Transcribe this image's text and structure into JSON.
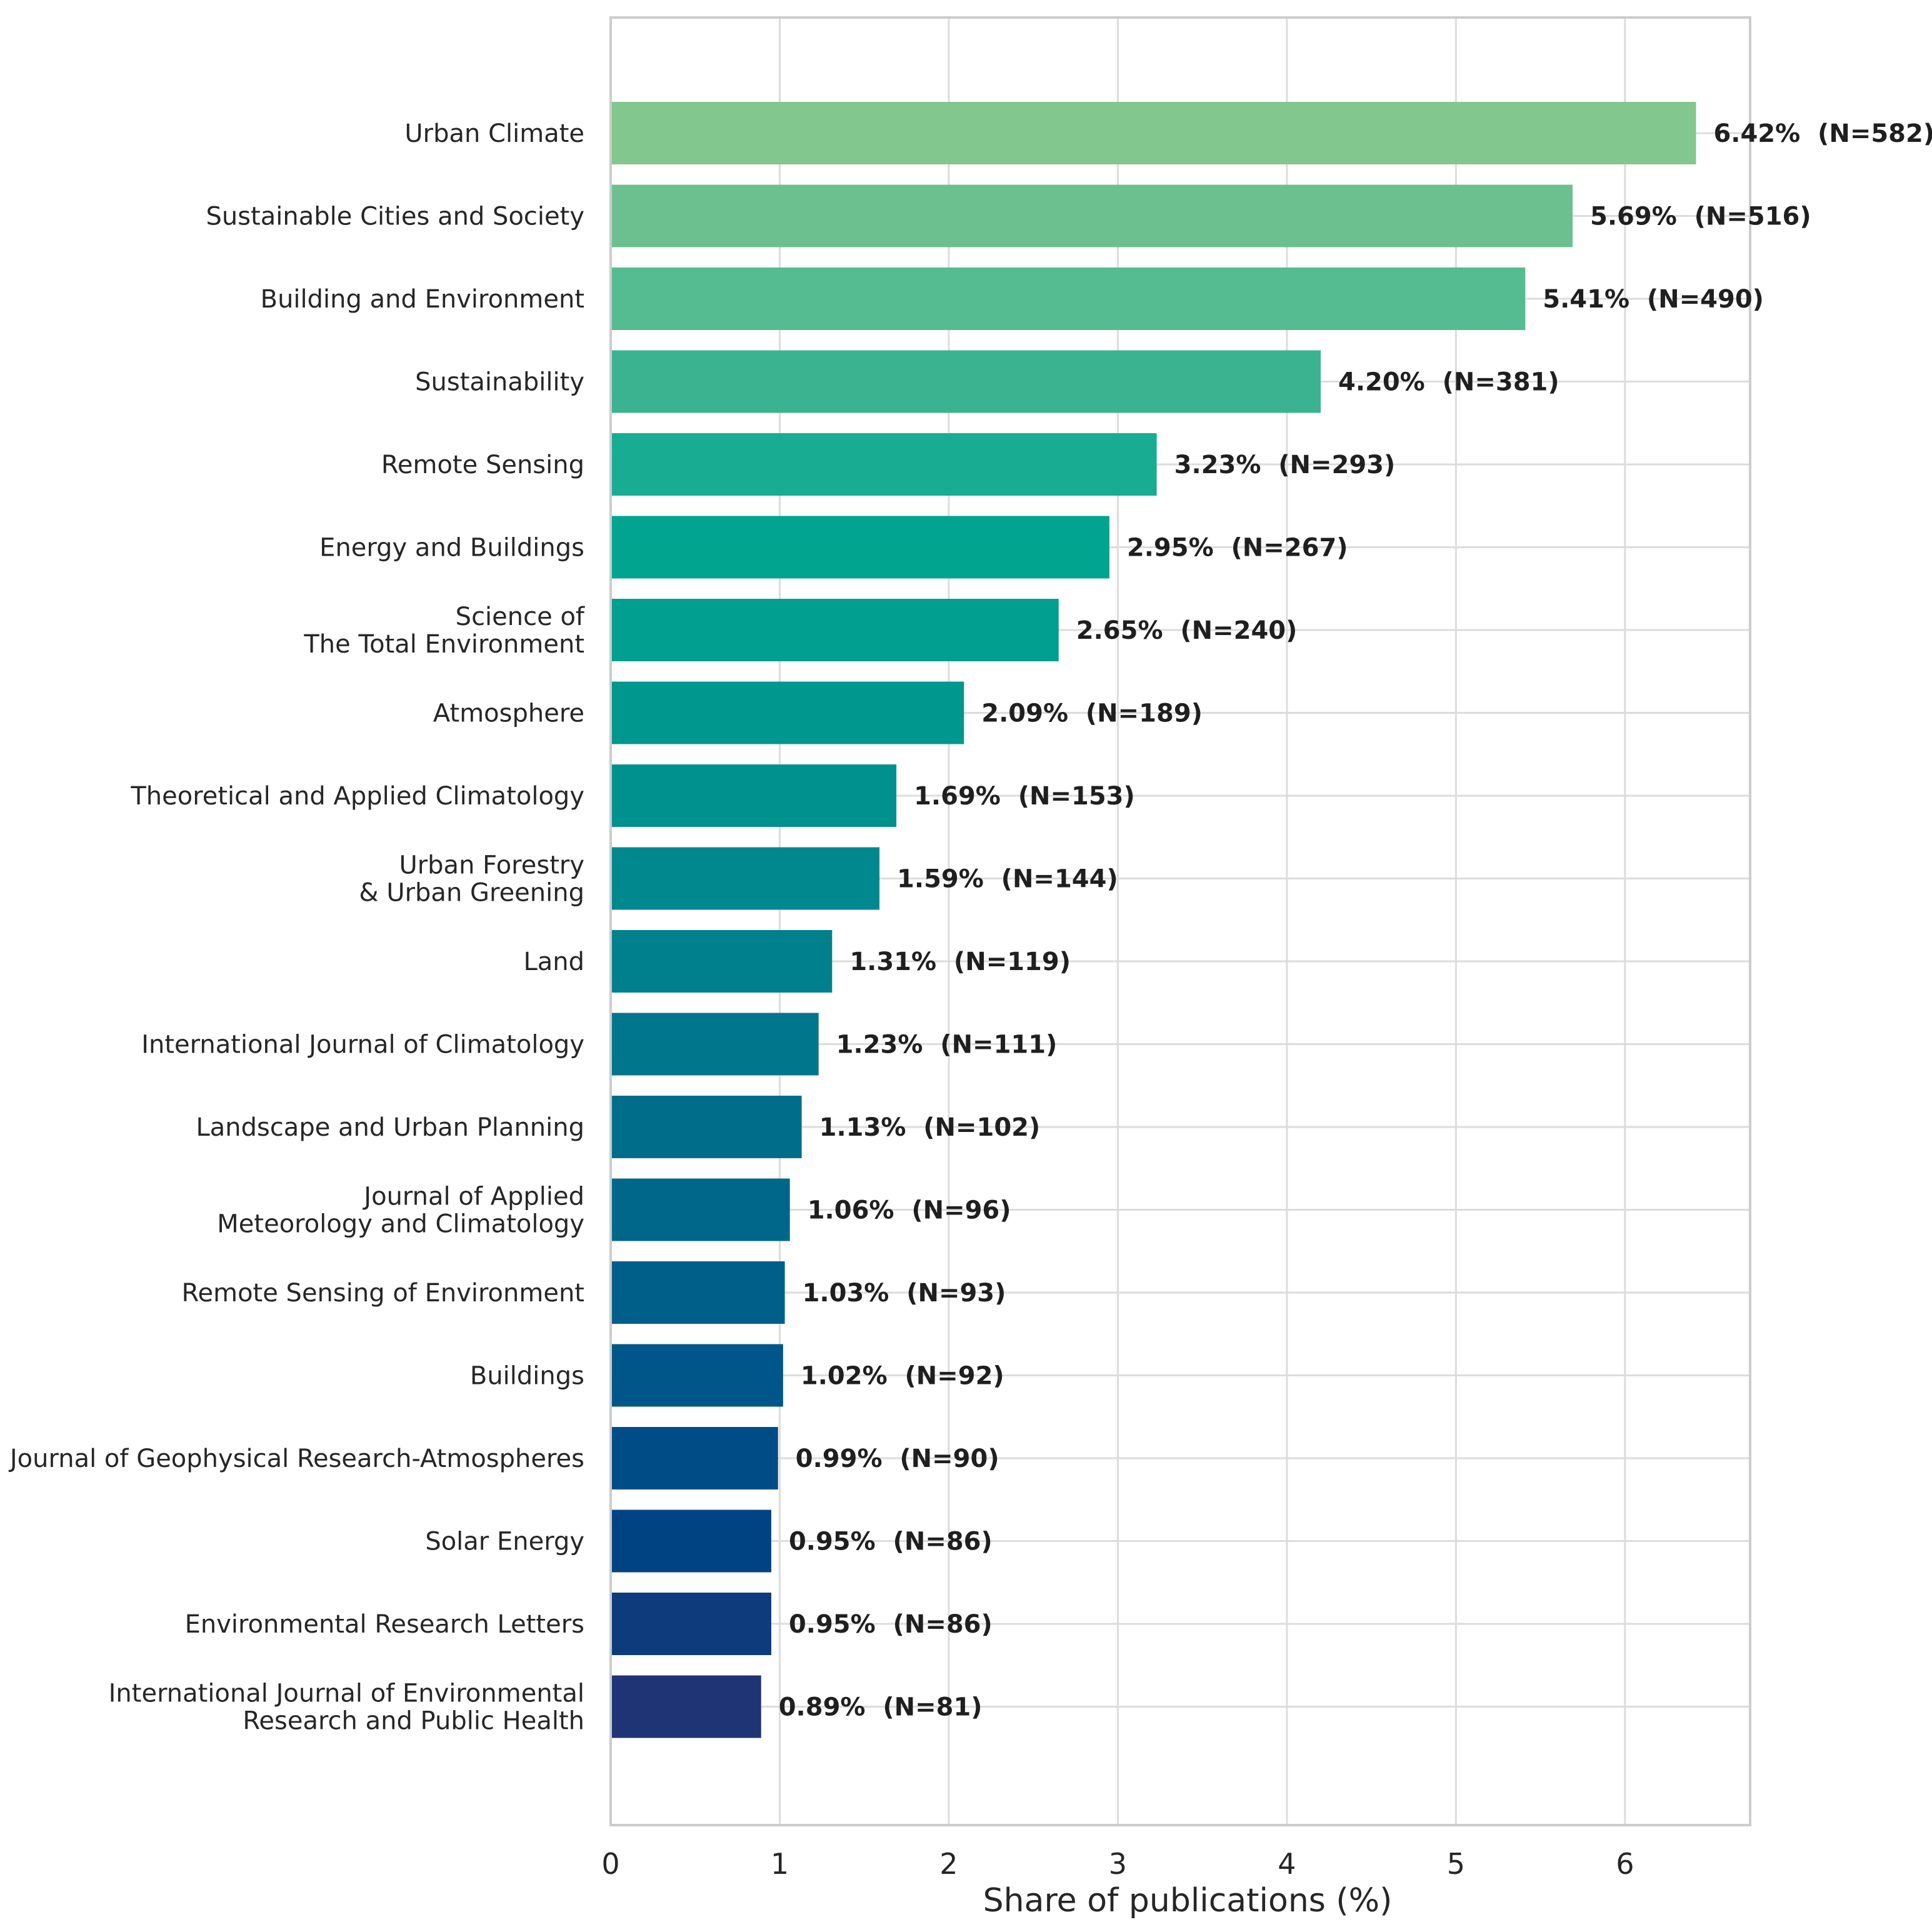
{
  "chart_data": {
    "type": "bar",
    "orientation": "horizontal",
    "title": "",
    "xlabel": "Share of publications (%)",
    "ylabel": "",
    "xlim": [
      0,
      6.74
    ],
    "x_ticks": [
      0,
      1,
      2,
      3,
      4,
      5,
      6
    ],
    "grid": true,
    "legend": "none",
    "categories": [
      "Urban Climate",
      "Sustainable Cities and Society",
      "Building and Environment",
      "Sustainability",
      "Remote Sensing",
      "Energy and Buildings",
      "Science of\nThe Total Environment",
      "Atmosphere",
      "Theoretical and Applied Climatology",
      "Urban Forestry\n& Urban Greening",
      "Land",
      "International Journal of Climatology",
      "Landscape and Urban Planning",
      "Journal of Applied\nMeteorology and Climatology",
      "Remote Sensing of Environment",
      "Buildings",
      "Journal of Geophysical Research-Atmospheres",
      "Solar Energy",
      "Environmental Research Letters",
      "International Journal of Environmental\nResearch and Public Health"
    ],
    "values": [
      6.42,
      5.69,
      5.41,
      4.2,
      3.23,
      2.95,
      2.65,
      2.09,
      1.69,
      1.59,
      1.31,
      1.23,
      1.13,
      1.06,
      1.03,
      1.02,
      0.99,
      0.95,
      0.95,
      0.89
    ],
    "counts": [
      582,
      516,
      490,
      381,
      293,
      267,
      240,
      189,
      153,
      144,
      119,
      111,
      102,
      96,
      93,
      92,
      90,
      86,
      86,
      81
    ],
    "value_labels": [
      "6.42%  (N=582)",
      "5.69%  (N=516)",
      "5.41%  (N=490)",
      "4.20%  (N=381)",
      "3.23%  (N=293)",
      "2.95%  (N=267)",
      "2.65%  (N=240)",
      "2.09%  (N=189)",
      "1.69%  (N=153)",
      "1.59%  (N=144)",
      "1.31%  (N=119)",
      "1.23%  (N=111)",
      "1.13%  (N=102)",
      "1.06%  (N=96)",
      "1.03%  (N=93)",
      "1.02%  (N=92)",
      "0.99%  (N=90)",
      "0.95%  (N=86)",
      "0.95%  (N=86)",
      "0.89%  (N=81)"
    ],
    "colors": [
      "#82c78e",
      "#6cc08f",
      "#55bb91",
      "#3bb391",
      "#18ad93",
      "#00a48f",
      "#009f8f",
      "#00978e",
      "#00918e",
      "#00888f",
      "#007f8d",
      "#00768c",
      "#006d8b",
      "#00678a",
      "#005f89",
      "#005688",
      "#004c86",
      "#004383",
      "#0d3b7c",
      "#1f3475"
    ]
  }
}
